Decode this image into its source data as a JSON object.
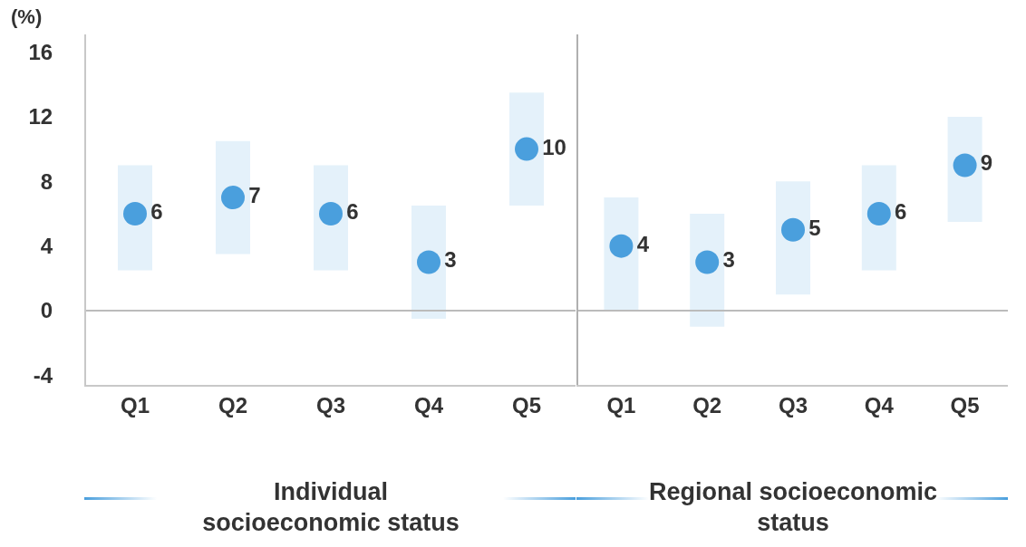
{
  "chart_data": [
    {
      "type": "scatter",
      "xlabel": "Individual socioeconomic status",
      "ylabel": "(%)",
      "categories": [
        "Q1",
        "Q2",
        "Q3",
        "Q4",
        "Q5"
      ],
      "series": [
        {
          "color": "#4a9fdd",
          "values": [
            6,
            7,
            6,
            3,
            10
          ],
          "errors": [
            [
              2.5,
              9
            ],
            [
              3.5,
              10.5
            ],
            [
              2.5,
              9
            ],
            [
              -0.5,
              6.5
            ],
            [
              6.5,
              13.5
            ]
          ]
        }
      ],
      "ylim": [
        -4.6,
        17.1
      ],
      "yticks": [
        -4,
        0,
        4,
        8,
        12,
        16
      ],
      "ref_lines": [
        {
          "axis": "y",
          "value": 0,
          "color": "#bbbbbb"
        }
      ],
      "data_labels": true,
      "marker": "circle"
    },
    {
      "type": "scatter",
      "xlabel": "Regional socioeconomic status",
      "categories": [
        "Q1",
        "Q2",
        "Q3",
        "Q4",
        "Q5"
      ],
      "series": [
        {
          "color": "#4a9fdd",
          "values": [
            4,
            3,
            5,
            6,
            9
          ],
          "errors": [
            [
              0,
              7
            ],
            [
              -1,
              6
            ],
            [
              1,
              8
            ],
            [
              2.5,
              9
            ],
            [
              5.5,
              12
            ]
          ]
        }
      ],
      "ylim": [
        -4.6,
        17.1
      ],
      "ref_lines": [
        {
          "axis": "y",
          "value": 0,
          "color": "#bbbbbb"
        }
      ],
      "data_labels": true,
      "marker": "circle",
      "tick_labels": "x"
    }
  ]
}
